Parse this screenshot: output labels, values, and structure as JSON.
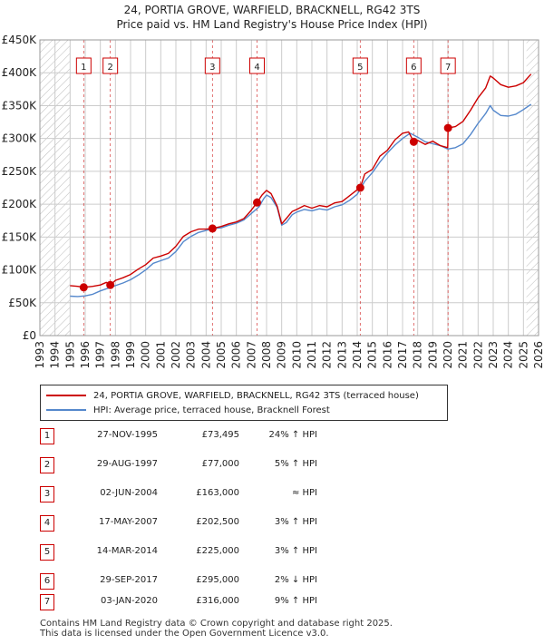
{
  "title_line1": "24, PORTIA GROVE, WARFIELD, BRACKNELL, RG42 3TS",
  "title_line2": "Price paid vs. HM Land Registry's House Price Index (HPI)",
  "colors": {
    "price": "#cc0000",
    "hpi": "#5588cc",
    "marker": "#cc0000",
    "grid": "#cccccc",
    "hatch": "#bbbbbb"
  },
  "legend": {
    "price_label": "24, PORTIA GROVE, WARFIELD, BRACKNELL, RG42 3TS (terraced house)",
    "hpi_label": "HPI: Average price, terraced house, Bracknell Forest"
  },
  "sales": [
    {
      "num": "1",
      "date": "27-NOV-1995",
      "price": "£73,495",
      "hpi": "24% ↑ HPI"
    },
    {
      "num": "2",
      "date": "29-AUG-1997",
      "price": "£77,000",
      "hpi": "5% ↑ HPI"
    },
    {
      "num": "3",
      "date": "02-JUN-2004",
      "price": "£163,000",
      "hpi": "≈ HPI"
    },
    {
      "num": "4",
      "date": "17-MAY-2007",
      "price": "£202,500",
      "hpi": "3% ↑ HPI"
    },
    {
      "num": "5",
      "date": "14-MAR-2014",
      "price": "£225,000",
      "hpi": "3% ↑ HPI"
    },
    {
      "num": "6",
      "date": "29-SEP-2017",
      "price": "£295,000",
      "hpi": "2% ↓ HPI"
    },
    {
      "num": "7",
      "date": "03-JAN-2020",
      "price": "£316,000",
      "hpi": "9% ↑ HPI"
    }
  ],
  "footer_line1": "Contains HM Land Registry data © Crown copyright and database right 2025.",
  "footer_line2": "This data is licensed under the Open Government Licence v3.0.",
  "chart_data": {
    "type": "line",
    "title": "24, PORTIA GROVE, WARFIELD, BRACKNELL, RG42 3TS",
    "subtitle": "Price paid vs. HM Land Registry's House Price Index (HPI)",
    "xlabel": "",
    "ylabel": "",
    "xlim": [
      1993,
      2026
    ],
    "ylim": [
      0,
      450000
    ],
    "x_ticks": [
      "1993",
      "1994",
      "1995",
      "1996",
      "1997",
      "1998",
      "1999",
      "2000",
      "2001",
      "2002",
      "2003",
      "2004",
      "2005",
      "2006",
      "2007",
      "2008",
      "2009",
      "2010",
      "2011",
      "2012",
      "2013",
      "2014",
      "2015",
      "2016",
      "2017",
      "2018",
      "2019",
      "2020",
      "2021",
      "2022",
      "2023",
      "2024",
      "2025",
      "2026"
    ],
    "y_ticks": [
      {
        "value": 0,
        "label": "£0"
      },
      {
        "value": 50000,
        "label": "£50K"
      },
      {
        "value": 100000,
        "label": "£100K"
      },
      {
        "value": 150000,
        "label": "£150K"
      },
      {
        "value": 200000,
        "label": "£200K"
      },
      {
        "value": 250000,
        "label": "£250K"
      },
      {
        "value": 300000,
        "label": "£300K"
      },
      {
        "value": 350000,
        "label": "£350K"
      },
      {
        "value": 400000,
        "label": "£400K"
      },
      {
        "value": 450000,
        "label": "£450K"
      }
    ],
    "hatched_ranges": [
      [
        1993,
        1995.0
      ],
      [
        2025.2,
        2026
      ]
    ],
    "series": [
      {
        "name": "24, PORTIA GROVE, WARFIELD, BRACKNELL, RG42 3TS (terraced house)",
        "color": "#cc0000",
        "x": [
          1995.0,
          1995.5,
          1995.9,
          1996.5,
          1997.0,
          1997.4,
          1997.66,
          1998.0,
          1998.5,
          1999.0,
          1999.5,
          2000.0,
          2000.5,
          2001.0,
          2001.5,
          2002.0,
          2002.5,
          2003.0,
          2003.5,
          2004.0,
          2004.42,
          2005.0,
          2005.5,
          2006.0,
          2006.5,
          2007.0,
          2007.37,
          2007.7,
          2008.0,
          2008.3,
          2008.7,
          2009.0,
          2009.3,
          2009.7,
          2010.0,
          2010.5,
          2011.0,
          2011.5,
          2012.0,
          2012.5,
          2013.0,
          2013.5,
          2014.0,
          2014.2,
          2014.5,
          2015.0,
          2015.5,
          2016.0,
          2016.5,
          2017.0,
          2017.4,
          2017.74,
          2018.0,
          2018.5,
          2019.0,
          2019.5,
          2019.99,
          2020.01,
          2020.5,
          2021.0,
          2021.5,
          2022.0,
          2022.5,
          2022.8,
          2023.0,
          2023.5,
          2024.0,
          2024.5,
          2025.0,
          2025.5
        ],
        "values": [
          76000,
          75000,
          73495,
          75000,
          77000,
          81000,
          77000,
          84000,
          88000,
          93000,
          101000,
          108000,
          118000,
          121000,
          125000,
          136000,
          151000,
          158000,
          162000,
          162000,
          163000,
          166000,
          170000,
          173000,
          178000,
          191000,
          202500,
          214000,
          221000,
          216000,
          197000,
          170000,
          178000,
          189000,
          192000,
          198000,
          194000,
          198000,
          196000,
          202000,
          204000,
          213000,
          222000,
          225000,
          246000,
          253000,
          273000,
          282000,
          298000,
          308000,
          310000,
          295000,
          297000,
          291000,
          296000,
          289000,
          286000,
          316000,
          318000,
          326000,
          343000,
          362000,
          377000,
          395000,
          392000,
          382000,
          378000,
          380000,
          385000,
          398000
        ]
      },
      {
        "name": "HPI: Average price, terraced house, Bracknell Forest",
        "color": "#5588cc",
        "x": [
          1995.0,
          1995.5,
          1996.0,
          1996.5,
          1997.0,
          1997.5,
          1998.0,
          1998.5,
          1999.0,
          1999.5,
          2000.0,
          2000.5,
          2001.0,
          2001.5,
          2002.0,
          2002.5,
          2003.0,
          2003.5,
          2004.0,
          2004.42,
          2005.0,
          2005.5,
          2006.0,
          2006.5,
          2007.0,
          2007.5,
          2007.8,
          2008.0,
          2008.3,
          2008.7,
          2009.0,
          2009.3,
          2009.7,
          2010.0,
          2010.5,
          2011.0,
          2011.5,
          2012.0,
          2012.5,
          2013.0,
          2013.5,
          2014.0,
          2014.5,
          2015.0,
          2015.5,
          2016.0,
          2016.5,
          2017.0,
          2017.5,
          2018.0,
          2018.5,
          2019.0,
          2019.5,
          2020.0,
          2020.5,
          2021.0,
          2021.5,
          2022.0,
          2022.5,
          2022.8,
          2023.0,
          2023.5,
          2024.0,
          2024.5,
          2025.0,
          2025.5
        ],
        "values": [
          60000,
          59500,
          60500,
          63000,
          68000,
          72000,
          76000,
          80000,
          85000,
          92000,
          100000,
          110000,
          114000,
          118000,
          128000,
          143000,
          151000,
          157000,
          160000,
          163000,
          164000,
          168000,
          171000,
          176000,
          186000,
          196000,
          208000,
          214000,
          210000,
          195000,
          168000,
          172000,
          184000,
          188000,
          192000,
          190000,
          193000,
          191000,
          196000,
          199000,
          206000,
          215000,
          235000,
          248000,
          264000,
          278000,
          290000,
          300000,
          308000,
          302000,
          295000,
          292000,
          289000,
          284000,
          286000,
          292000,
          306000,
          323000,
          338000,
          350000,
          343000,
          335000,
          334000,
          337000,
          344000,
          352000
        ]
      }
    ],
    "markers": [
      {
        "label": "1",
        "x": 1995.9,
        "y": 73495
      },
      {
        "label": "2",
        "x": 1997.66,
        "y": 77000
      },
      {
        "label": "3",
        "x": 2004.42,
        "y": 163000
      },
      {
        "label": "4",
        "x": 2007.37,
        "y": 202500
      },
      {
        "label": "5",
        "x": 2014.2,
        "y": 225000
      },
      {
        "label": "6",
        "x": 2017.74,
        "y": 295000
      },
      {
        "label": "7",
        "x": 2020.01,
        "y": 316000
      }
    ]
  }
}
